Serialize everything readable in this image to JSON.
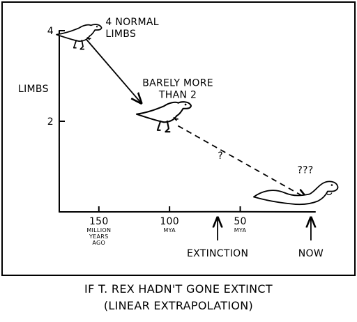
{
  "chart_data": {
    "type": "line",
    "title": "",
    "ylabel": "LIMBS",
    "xlabel": "",
    "x_reversed": true,
    "xlim": [
      178,
      -3
    ],
    "ylim": [
      0,
      4
    ],
    "y_ticks": [
      {
        "value": 4,
        "label": "4"
      },
      {
        "value": 2,
        "label": "2"
      }
    ],
    "x_ticks": [
      {
        "value": 150,
        "label": "150",
        "sublabel": [
          "MILLION",
          "YEARS",
          "AGO"
        ]
      },
      {
        "value": 100,
        "label": "100",
        "sublabel": [
          "MYA"
        ]
      },
      {
        "value": 50,
        "label": "50",
        "sublabel": [
          "MYA"
        ]
      }
    ],
    "series": [
      {
        "style": "solid",
        "x": [
          160,
          120
        ],
        "y": [
          3.85,
          2.4
        ]
      },
      {
        "style": "dashed",
        "x": [
          94,
          3
        ],
        "y": [
          1.9,
          0.3
        ]
      }
    ],
    "points": [
      {
        "x": 164,
        "y": 3.85,
        "label": [
          "4 NORMAL",
          "LIMBS"
        ],
        "icon": "t-rex-icon"
      },
      {
        "x": 104,
        "y": 2.1,
        "label": [
          "BARELY MORE",
          "THAN 2"
        ],
        "icon": "t-rex-icon"
      },
      {
        "x": 0,
        "y": 0.3,
        "label": [
          "???"
        ],
        "icon": "limbless-t-rex-icon"
      }
    ],
    "annotations": [
      {
        "x": 64,
        "y": 1.2,
        "text": "?"
      },
      {
        "x": 66,
        "marker": "arrow-up",
        "text": "EXTINCTION"
      },
      {
        "x": 0,
        "marker": "arrow-up",
        "text": "NOW"
      }
    ]
  },
  "caption": {
    "line1": "IF T. REX HADN'T GONE EXTINCT",
    "line2": "(LINEAR EXTRAPOLATION)"
  }
}
